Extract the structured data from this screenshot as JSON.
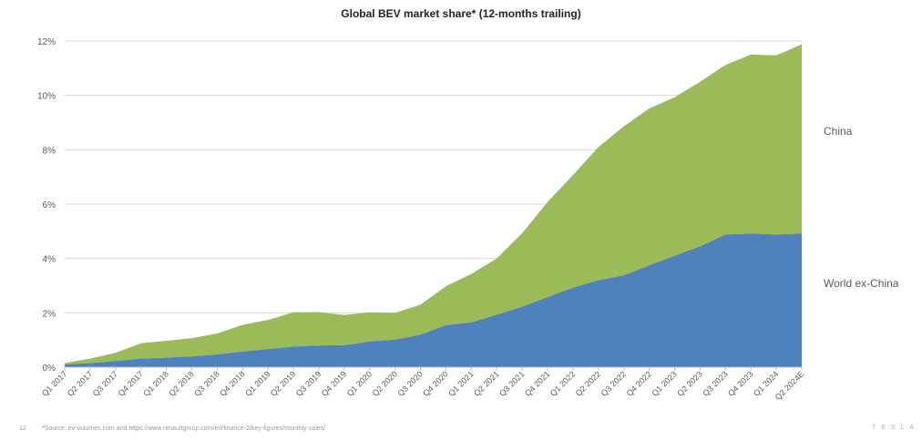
{
  "chart_data": {
    "type": "area",
    "stacked": true,
    "title": "Global BEV market share* (12-months trailing)",
    "categories": [
      "Q1 2017",
      "Q2 2017",
      "Q3 2017",
      "Q4 2017",
      "Q1 2018",
      "Q2 2018",
      "Q3 2018",
      "Q4 2018",
      "Q1 2019",
      "Q2 2019",
      "Q3 2019",
      "Q4 2019",
      "Q1 2020",
      "Q2 2020",
      "Q3 2020",
      "Q4 2020",
      "Q1 2021",
      "Q2 2021",
      "Q3 2021",
      "Q4 2021",
      "Q1 2022",
      "Q2 2022",
      "Q3 2022",
      "Q4 2022",
      "Q1 2023",
      "Q2 2023",
      "Q3 2023",
      "Q4 2023",
      "Q1 2024",
      "Q2 2024E"
    ],
    "series": [
      {
        "name": "World ex-China",
        "color": "#4f81bd",
        "values": [
          0.1,
          0.15,
          0.23,
          0.32,
          0.35,
          0.4,
          0.47,
          0.58,
          0.67,
          0.76,
          0.8,
          0.81,
          0.95,
          1.02,
          1.2,
          1.55,
          1.65,
          1.93,
          2.23,
          2.58,
          2.93,
          3.2,
          3.38,
          3.75,
          4.1,
          4.45,
          4.88,
          4.92,
          4.88,
          4.92
        ]
      },
      {
        "name": "China",
        "color": "#9bbb59",
        "values": [
          0.05,
          0.17,
          0.3,
          0.56,
          0.62,
          0.67,
          0.77,
          0.98,
          1.07,
          1.26,
          1.23,
          1.11,
          1.07,
          0.98,
          1.1,
          1.43,
          1.78,
          2.07,
          2.7,
          3.5,
          4.14,
          4.9,
          5.48,
          5.77,
          5.83,
          6.05,
          6.24,
          6.58,
          6.59,
          6.96
        ]
      }
    ],
    "ylim": [
      0,
      12
    ],
    "yticks": [
      0,
      2,
      4,
      6,
      8,
      10,
      12
    ],
    "ytick_format": "percent",
    "grid": true,
    "legend": "direct labels right of plot"
  },
  "labels": {
    "china": "China",
    "world_ex_china": "World ex-China"
  },
  "footer": {
    "page": "12",
    "source": "*Source: ev-volumes.com and https://www.renaultgroup.com/en/finance-2/key-figures/monthly-sales/",
    "logo": "TESLA"
  }
}
